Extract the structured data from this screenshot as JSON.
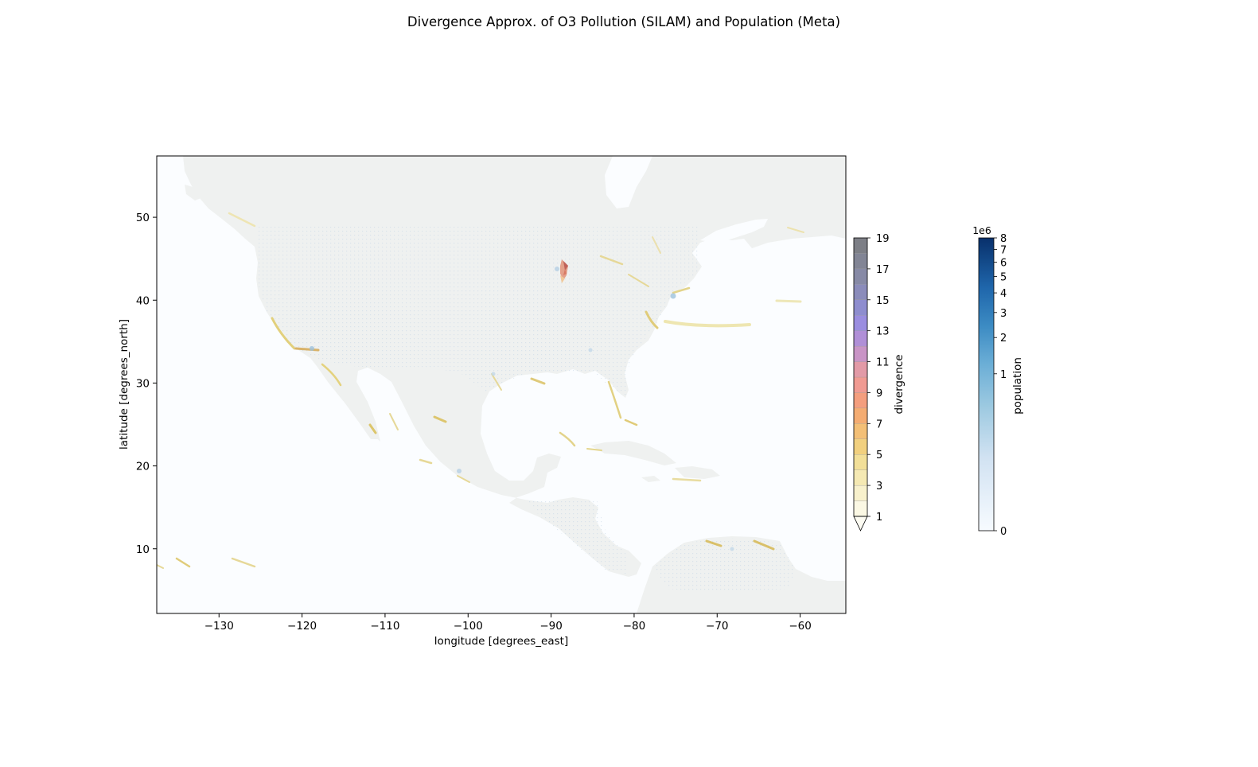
{
  "title": "Divergence Approx. of O3 Pollution (SILAM) and Population (Meta)",
  "map": {
    "xlabel": "longitude [degrees_east]",
    "ylabel": "latitude [degrees_north]",
    "xlim": [
      -137.5,
      -54.5
    ],
    "ylim": [
      2.2,
      57.4
    ],
    "xticks": [
      -130,
      -120,
      -110,
      -100,
      -90,
      -80,
      -70,
      -60
    ],
    "xtick_labels": [
      "−130",
      "−120",
      "−110",
      "−100",
      "−90",
      "−80",
      "−70",
      "−60"
    ],
    "yticks": [
      10,
      20,
      30,
      40,
      50
    ],
    "ytick_labels": [
      "10",
      "20",
      "30",
      "40",
      "50"
    ],
    "ocean_color": "#fbfdff",
    "land_color": "#eff1f0"
  },
  "divergence_colorbar": {
    "label": "divergence",
    "range": [
      1,
      19
    ],
    "extend": "min",
    "ticks": [
      1,
      3,
      5,
      7,
      9,
      11,
      13,
      15,
      17,
      19
    ],
    "tick_labels": [
      "1",
      "3",
      "5",
      "7",
      "9",
      "11",
      "13",
      "15",
      "17",
      "19"
    ],
    "band_colors": [
      "#fbf8e4",
      "#f8f1cc",
      "#f5e9b3",
      "#f2df98",
      "#f1d07f",
      "#f3bf76",
      "#f4ac72",
      "#f49e7e",
      "#f09a92",
      "#e29aa7",
      "#c994c6",
      "#b08fd7",
      "#9a8de0",
      "#8e8dcf",
      "#8b8cbb",
      "#878aa6",
      "#828595",
      "#7d7f86"
    ],
    "under_color": "#fdfcf3"
  },
  "population_colorbar": {
    "label": "population",
    "scale_label": "1e6",
    "range_millions": [
      0,
      8
    ],
    "ticks_millions": [
      0,
      1,
      2,
      3,
      4,
      5,
      6,
      7,
      8
    ],
    "tick_labels": [
      "0",
      "1",
      "2",
      "3",
      "4",
      "5",
      "6",
      "7",
      "8"
    ],
    "colormap": "Blues"
  },
  "chart_data": {
    "type": "heatmap",
    "title": "Divergence Approx. of O3 Pollution (SILAM) and Population (Meta)",
    "xlabel": "longitude [degrees_east]",
    "ylabel": "latitude [degrees_north]",
    "xlim": [
      -137.5,
      -54.5
    ],
    "ylim": [
      2.2,
      57.4
    ],
    "grid": false,
    "layers": [
      {
        "name": "divergence",
        "colormap": "yellow-orange-pink-purple-grey",
        "range": [
          1,
          19
        ],
        "extend": "min"
      },
      {
        "name": "population",
        "colormap": "Blues",
        "range": [
          0,
          8000000
        ],
        "scale": "power"
      }
    ],
    "hotspots": [
      {
        "lon": -87.5,
        "lat": 44.5,
        "divergence": 12
      },
      {
        "lon": -118.3,
        "lat": 34.1,
        "divergence": 7
      },
      {
        "lon": -122.3,
        "lat": 37.0,
        "divergence": 4
      },
      {
        "lon": -80.4,
        "lat": 27.5,
        "divergence": 4
      },
      {
        "lon": -76.5,
        "lat": 39.0,
        "divergence": 4
      },
      {
        "lon": -74.0,
        "lat": 40.7,
        "divergence": 3
      },
      {
        "lon": -90.0,
        "lat": 38.6,
        "divergence": 3
      },
      {
        "lon": -95.3,
        "lat": 29.7,
        "divergence": 3
      }
    ]
  }
}
